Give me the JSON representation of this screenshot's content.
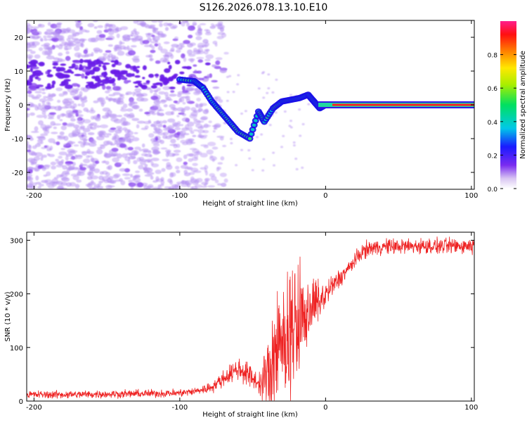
{
  "title": "S126.2026.078.13.10.E10",
  "colors": {
    "snr_line": "#ee2222",
    "axis": "#000000",
    "spectrogram_background": "#ffffff"
  },
  "chart_data": [
    {
      "type": "heatmap",
      "name": "spectrogram",
      "xlabel": "Height of straight line (km)",
      "ylabel": "Frequency (Hz)",
      "xlim": [
        -205,
        102
      ],
      "ylim": [
        -25,
        25
      ],
      "xticks": [
        -200,
        -100,
        0,
        100
      ],
      "yticks": [
        -20,
        -10,
        0,
        10,
        20
      ],
      "features": {
        "noise_region_km": [
          -205,
          -80
        ],
        "noise_band_center_hz": 9,
        "steady_line_start_km": -5,
        "steady_line_frequency_hz": 0
      },
      "ridge": [
        {
          "x": -100,
          "f": 7.5
        },
        {
          "x": -90,
          "f": 7
        },
        {
          "x": -84,
          "f": 5
        },
        {
          "x": -78,
          "f": 1
        },
        {
          "x": -72,
          "f": -2
        },
        {
          "x": -66,
          "f": -5
        },
        {
          "x": -60,
          "f": -8
        },
        {
          "x": -52,
          "f": -10
        },
        {
          "x": -46,
          "f": -2
        },
        {
          "x": -42,
          "f": -5
        },
        {
          "x": -36,
          "f": -1
        },
        {
          "x": -30,
          "f": 1
        },
        {
          "x": -24,
          "f": 1.5
        },
        {
          "x": -18,
          "f": 2
        },
        {
          "x": -12,
          "f": 3
        },
        {
          "x": -8,
          "f": 1
        },
        {
          "x": -4,
          "f": -1
        },
        {
          "x": 0,
          "f": 0
        },
        {
          "x": 100,
          "f": 0
        }
      ],
      "colorbar": {
        "label": "Normalized spectral amplitude",
        "range": [
          0,
          1
        ],
        "ticks": [
          "0.0",
          "0.2",
          "0.4",
          "0.6",
          "0.8"
        ]
      }
    },
    {
      "type": "line",
      "name": "snr",
      "xlabel": "Height of straight line (km)",
      "ylabel": "SNR (10 * v/v)",
      "xlim": [
        -205,
        102
      ],
      "ylim": [
        0,
        315
      ],
      "xticks": [
        -200,
        -100,
        0,
        100
      ],
      "yticks": [
        0,
        100,
        200,
        300
      ],
      "series": [
        {
          "name": "SNR",
          "x": [
            -205,
            -180,
            -150,
            -120,
            -100,
            -90,
            -80,
            -75,
            -70,
            -65,
            -60,
            -55,
            -50,
            -45,
            -40,
            -35,
            -30,
            -25,
            -20,
            -15,
            -10,
            -5,
            0,
            5,
            10,
            15,
            20,
            25,
            30,
            40,
            60,
            80,
            102
          ],
          "values": [
            12,
            12,
            13,
            14,
            15,
            18,
            24,
            32,
            42,
            52,
            60,
            54,
            42,
            32,
            48,
            80,
            108,
            128,
            145,
            160,
            172,
            185,
            198,
            215,
            230,
            245,
            262,
            278,
            285,
            288,
            289,
            289,
            290
          ],
          "noise_amplitude": [
            6,
            6,
            6,
            6,
            6,
            6,
            8,
            10,
            12,
            14,
            18,
            20,
            16,
            14,
            60,
            85,
            90,
            90,
            80,
            65,
            45,
            32,
            22,
            18,
            14,
            12,
            12,
            12,
            12,
            12,
            12,
            12,
            12
          ]
        }
      ]
    }
  ]
}
